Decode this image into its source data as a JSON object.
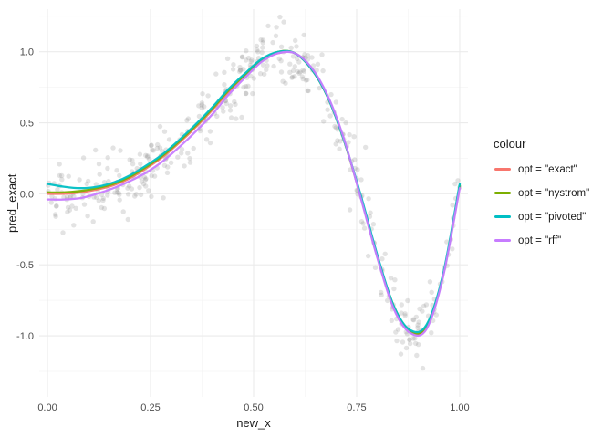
{
  "chart_data": {
    "type": "scatter",
    "title": "",
    "xlabel": "new_x",
    "ylabel": "pred_exact",
    "xlim": [
      -0.02,
      1.02
    ],
    "ylim": [
      -1.43,
      1.3
    ],
    "x_ticks": [
      {
        "value": 0,
        "label": "0.00"
      },
      {
        "value": 0.25,
        "label": "0.25"
      },
      {
        "value": 0.5,
        "label": "0.50"
      },
      {
        "value": 0.75,
        "label": "0.75"
      },
      {
        "value": 1,
        "label": "1.00"
      }
    ],
    "y_ticks": [
      {
        "value": 1.0,
        "label": "1.0"
      },
      {
        "value": 0.5,
        "label": "0.5"
      },
      {
        "value": 0.0,
        "label": "0.0"
      },
      {
        "value": -0.5,
        "label": "-0.5"
      },
      {
        "value": -1.0,
        "label": "-1.0"
      }
    ],
    "grid": "major+minor",
    "grid_color": "#ebebeb",
    "grid_minor_color": "#f5f5f5",
    "x": [
      0,
      0.04,
      0.08,
      0.12,
      0.16,
      0.2,
      0.24,
      0.28,
      0.32,
      0.36,
      0.4,
      0.44,
      0.48,
      0.52,
      0.56,
      0.6,
      0.64,
      0.68,
      0.72,
      0.76,
      0.8,
      0.84,
      0.88,
      0.92,
      0.96,
      1
    ],
    "series": [
      {
        "name": "opt = \"exact\"",
        "color": "#F8766D",
        "values": [
          0.0,
          0.0,
          0.01,
          0.03,
          0.06,
          0.11,
          0.18,
          0.26,
          0.36,
          0.47,
          0.59,
          0.72,
          0.84,
          0.94,
          0.99,
          0.99,
          0.88,
          0.68,
          0.37,
          -0.02,
          -0.44,
          -0.8,
          -0.97,
          -0.94,
          -0.57,
          0.05
        ]
      },
      {
        "name": "opt = \"nystrom\"",
        "color": "#7CAE00",
        "values": [
          0.01,
          0.01,
          0.02,
          0.04,
          0.07,
          0.12,
          0.19,
          0.27,
          0.37,
          0.48,
          0.6,
          0.73,
          0.84,
          0.94,
          1.0,
          0.99,
          0.88,
          0.68,
          0.37,
          -0.02,
          -0.44,
          -0.79,
          -0.97,
          -0.93,
          -0.57,
          0.06
        ]
      },
      {
        "name": "opt = \"pivoted\"",
        "color": "#00BFC4",
        "values": [
          0.07,
          0.05,
          0.04,
          0.05,
          0.08,
          0.13,
          0.2,
          0.28,
          0.38,
          0.49,
          0.61,
          0.74,
          0.85,
          0.95,
          1.0,
          0.99,
          0.88,
          0.68,
          0.37,
          -0.01,
          -0.43,
          -0.79,
          -0.96,
          -0.92,
          -0.56,
          0.07
        ]
      },
      {
        "name": "opt = \"rff\"",
        "color": "#C77CFF",
        "values": [
          -0.04,
          -0.04,
          -0.03,
          0.0,
          0.04,
          0.09,
          0.15,
          0.23,
          0.33,
          0.44,
          0.56,
          0.7,
          0.82,
          0.93,
          0.99,
          0.99,
          0.89,
          0.69,
          0.38,
          -0.03,
          -0.45,
          -0.81,
          -0.98,
          -0.95,
          -0.58,
          0.04
        ]
      }
    ],
    "scatter": {
      "n": 420,
      "noise_sd": 0.12,
      "color": "#808080",
      "opacity": 0.22,
      "radius": 2.7,
      "seed": 42
    },
    "legend": {
      "title": "colour",
      "position": "right"
    },
    "tick_label_color": "#4d4d4d"
  }
}
